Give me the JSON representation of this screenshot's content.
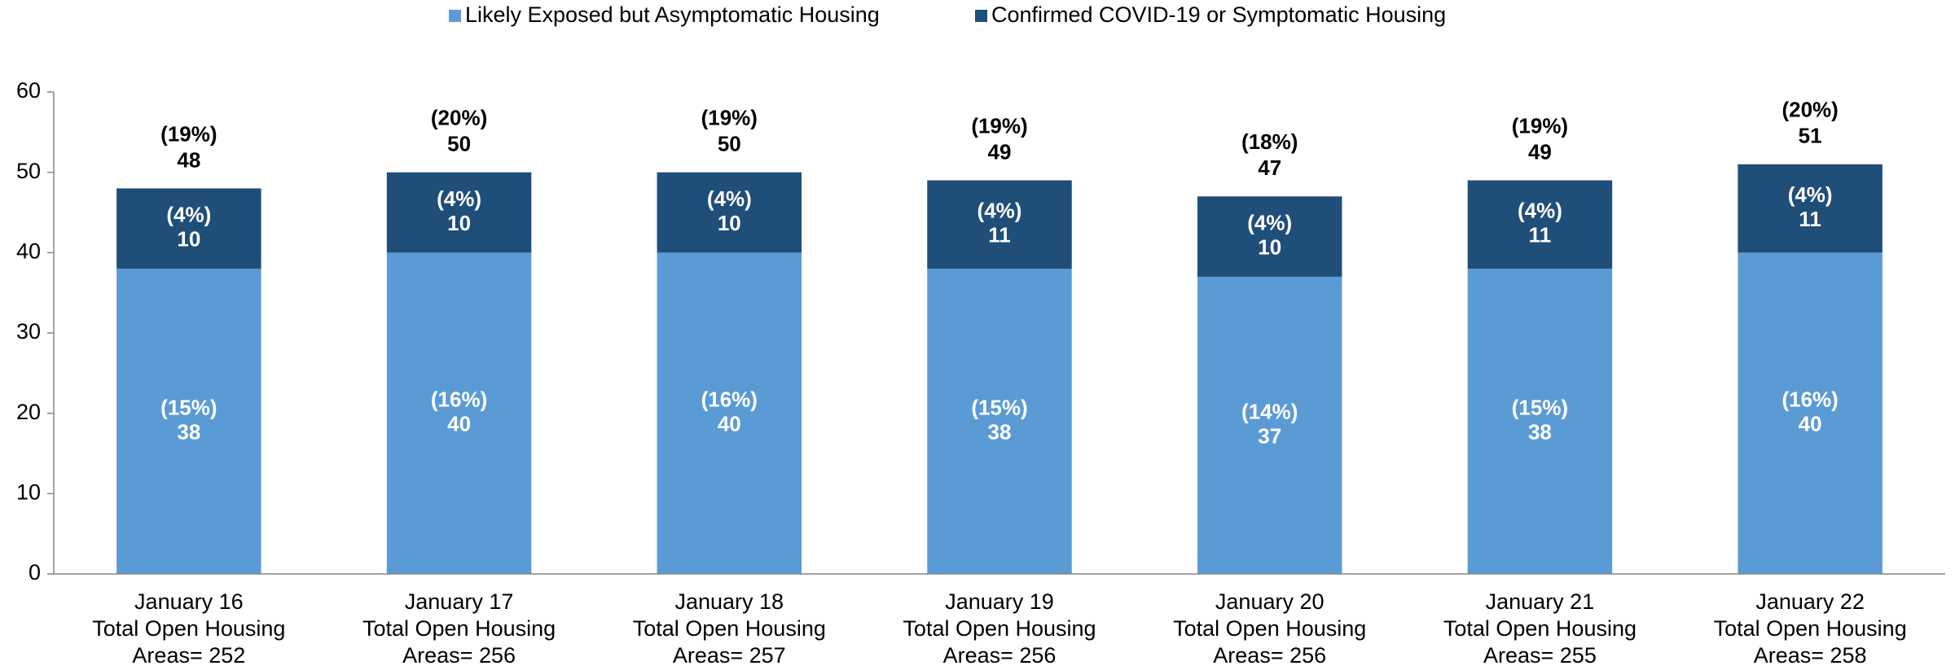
{
  "chart_data": {
    "type": "stacked_bar",
    "categories": [
      [
        "January 16",
        "Total Open Housing",
        "Areas= 252"
      ],
      [
        "January 17",
        "Total Open Housing",
        "Areas= 256"
      ],
      [
        "January 18",
        "Total Open Housing",
        "Areas= 257"
      ],
      [
        "January 19",
        "Total Open Housing",
        "Areas= 256"
      ],
      [
        "January 20",
        "Total Open Housing",
        "Areas= 256"
      ],
      [
        "January 21",
        "Total Open Housing",
        "Areas= 255"
      ],
      [
        "January 22",
        "Total Open Housing",
        "Areas= 258"
      ]
    ],
    "series": [
      {
        "name": "Likely Exposed but Asymptomatic Housing",
        "color": "#5b9bd5",
        "values": [
          38,
          40,
          40,
          38,
          37,
          38,
          40
        ],
        "percent_labels": [
          "(15%)",
          "(16%)",
          "(16%)",
          "(15%)",
          "(14%)",
          "(15%)",
          "(16%)"
        ]
      },
      {
        "name": "Confirmed COVID-19 or Symptomatic Housing",
        "color": "#1f4e79",
        "values": [
          10,
          10,
          10,
          11,
          10,
          11,
          11
        ],
        "percent_labels": [
          "(4%)",
          "(4%)",
          "(4%)",
          "(4%)",
          "(4%)",
          "(4%)",
          "(4%)"
        ]
      }
    ],
    "totals": [
      48,
      50,
      50,
      49,
      47,
      49,
      51
    ],
    "total_percent_labels": [
      "(19%)",
      "(20%)",
      "(19%)",
      "(19%)",
      "(18%)",
      "(19%)",
      "(20%)"
    ],
    "ylim": [
      0,
      60
    ],
    "yticks": [
      0,
      10,
      20,
      30,
      40,
      50,
      60
    ],
    "grid": false,
    "legend": "top"
  }
}
